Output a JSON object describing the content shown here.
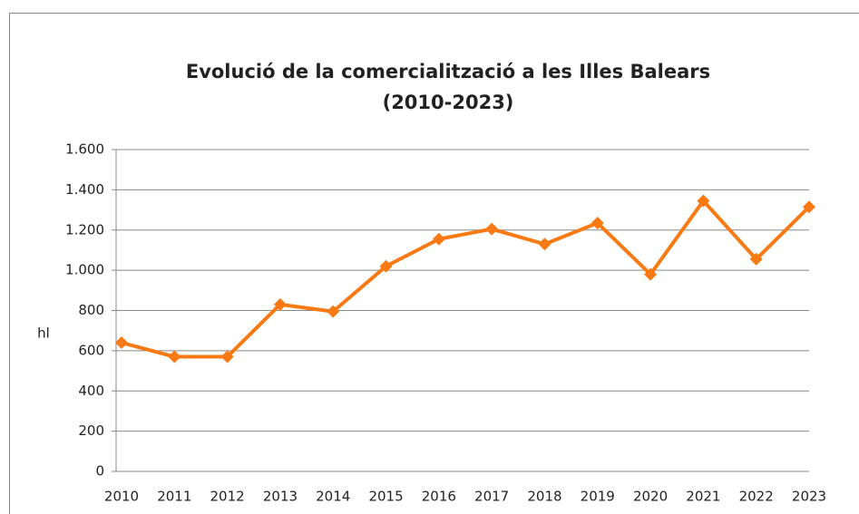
{
  "chart_data": {
    "type": "line",
    "title": [
      "Evolució de la comercialització a les Illes Balears",
      "(2010-2023)"
    ],
    "ylabel": "hl",
    "categories": [
      "2010",
      "2011",
      "2012",
      "2013",
      "2014",
      "2015",
      "2016",
      "2017",
      "2018",
      "2019",
      "2020",
      "2021",
      "2022",
      "2023"
    ],
    "series": [
      {
        "name": "hl",
        "color": "#f97a12",
        "values": [
          640,
          570,
          570,
          830,
          795,
          1020,
          1155,
          1205,
          1130,
          1235,
          980,
          1345,
          1055,
          1315
        ]
      }
    ],
    "ylim": [
      0,
      1600
    ],
    "yticks": [
      0,
      200,
      400,
      600,
      800,
      {
        "value": 1000,
        "label": "1.000"
      },
      {
        "value": 1200,
        "label": "1.200"
      },
      {
        "value": 1400,
        "label": "1.400"
      },
      {
        "value": 1600,
        "label": "1.600"
      }
    ],
    "grid": true
  }
}
